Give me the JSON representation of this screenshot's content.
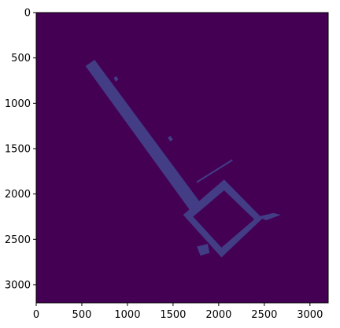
{
  "chart_data": {
    "type": "heatmap",
    "title": "",
    "xlabel": "",
    "ylabel": "",
    "xlim": [
      0,
      3200
    ],
    "ylim": [
      3200,
      0
    ],
    "y_inverted": true,
    "x_ticks": [
      0,
      500,
      1000,
      1500,
      2000,
      2500,
      3000
    ],
    "y_ticks": [
      0,
      500,
      1000,
      1500,
      2000,
      2500,
      3000
    ],
    "x_tick_labels": [
      "0",
      "500",
      "1000",
      "1500",
      "2000",
      "2500",
      "3000"
    ],
    "y_tick_labels": [
      "0",
      "500",
      "1000",
      "1500",
      "2000",
      "2500",
      "3000"
    ],
    "grid": false,
    "colormap": "viridis",
    "background_color": "#440154",
    "feature_color": "#433d86",
    "features": {
      "corridor": {
        "polygon": [
          [
            540,
            590
          ],
          [
            640,
            520
          ],
          [
            1810,
            2110
          ],
          [
            1700,
            2200
          ]
        ]
      },
      "diagonal_line": {
        "from": [
          1760,
          1870
        ],
        "to": [
          2150,
          1625
        ]
      },
      "room_outer": {
        "polygon": [
          [
            1610,
            2230
          ],
          [
            2060,
            1840
          ],
          [
            2480,
            2270
          ],
          [
            2030,
            2700
          ]
        ]
      },
      "room_inner": {
        "polygon": [
          [
            1720,
            2250
          ],
          [
            2060,
            1960
          ],
          [
            2390,
            2280
          ],
          [
            2030,
            2590
          ]
        ]
      },
      "room_stub": {
        "polygon": [
          [
            2430,
            2250
          ],
          [
            2600,
            2210
          ],
          [
            2680,
            2230
          ],
          [
            2520,
            2290
          ]
        ]
      },
      "bottom_stub": {
        "polygon": [
          [
            1760,
            2580
          ],
          [
            1880,
            2550
          ],
          [
            1900,
            2650
          ],
          [
            1800,
            2680
          ]
        ]
      },
      "corridor_protrusions": [
        {
          "polygon": [
            [
              850,
              720
            ],
            [
              880,
              700
            ],
            [
              900,
              740
            ],
            [
              870,
              760
            ]
          ]
        },
        {
          "polygon": [
            [
              1440,
              1380
            ],
            [
              1470,
              1360
            ],
            [
              1500,
              1400
            ],
            [
              1470,
              1420
            ]
          ]
        }
      ]
    }
  }
}
